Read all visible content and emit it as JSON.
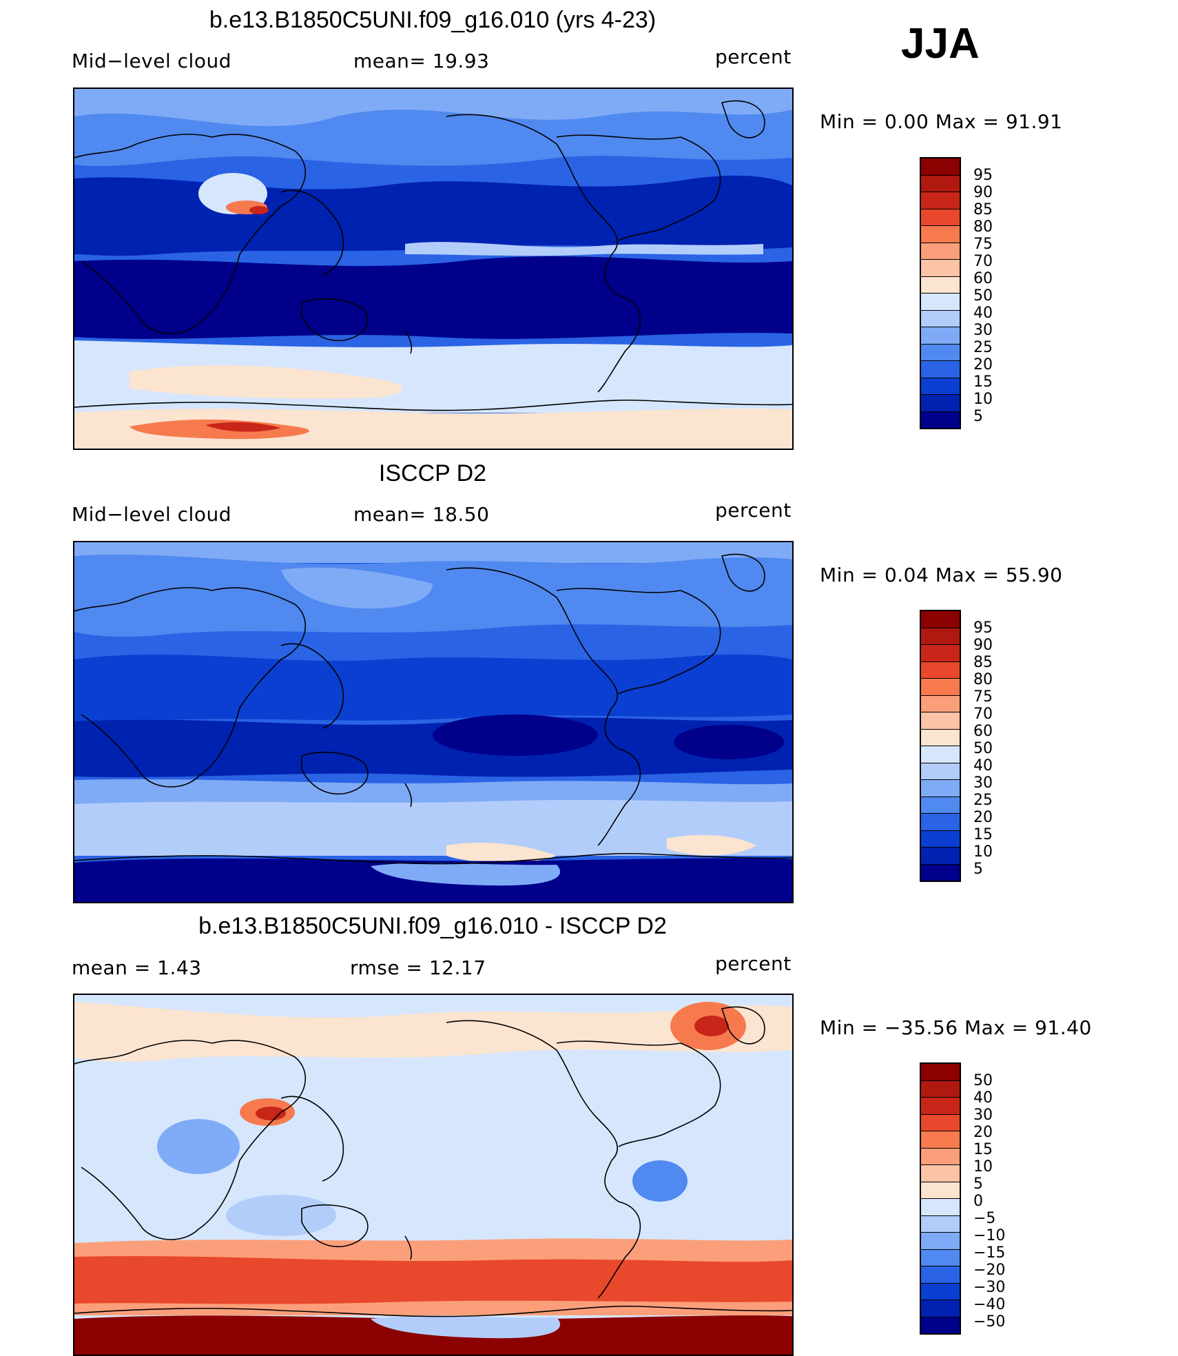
{
  "season": "JJA",
  "panels": [
    {
      "id": "model",
      "title": "b.e13.B1850C5UNI.f09_g16.010 (yrs 4-23)",
      "left_label": "Mid−level  cloud",
      "center_label": "mean=   19.93",
      "units": "percent",
      "minmax": "Min  =     0.00  Max  =    91.91",
      "colorbar_levels": [
        "95",
        "90",
        "85",
        "80",
        "75",
        "70",
        "60",
        "50",
        "40",
        "30",
        "25",
        "20",
        "15",
        "10",
        "5"
      ],
      "colors": {
        "c0": "#00008b",
        "c1": "#0022b0",
        "c2": "#0b3fd1",
        "c3": "#2a63e4",
        "c4": "#5089ef",
        "c5": "#7fabf6",
        "c6": "#b3cdfb",
        "c7": "#d6e6fd",
        "c8": "#fbe4d0",
        "c9": "#fcc3a6",
        "c10": "#fb9f7a",
        "c11": "#f77a4f",
        "c12": "#e8482b",
        "c13": "#c9261a",
        "c14": "#b0190f",
        "c15": "#8b0000"
      }
    },
    {
      "id": "obs",
      "title": "ISCCP D2",
      "left_label": "Mid−level  cloud",
      "center_label": "mean=   18.50",
      "units": "percent",
      "minmax": "Min  =     0.04  Max  =    55.90",
      "colorbar_levels": [
        "95",
        "90",
        "85",
        "80",
        "75",
        "70",
        "60",
        "50",
        "40",
        "30",
        "25",
        "20",
        "15",
        "10",
        "5"
      ],
      "colors": {
        "c0": "#00008b",
        "c1": "#0022b0",
        "c2": "#0b3fd1",
        "c3": "#2a63e4",
        "c4": "#5089ef",
        "c5": "#7fabf6",
        "c6": "#b3cdfb",
        "c7": "#d6e6fd",
        "c8": "#fbe4d0",
        "c9": "#fcc3a6",
        "c10": "#fb9f7a",
        "c11": "#f77a4f",
        "c12": "#e8482b",
        "c13": "#c9261a",
        "c14": "#b0190f",
        "c15": "#8b0000"
      }
    },
    {
      "id": "diff",
      "title": "b.e13.B1850C5UNI.f09_g16.010 - ISCCP D2",
      "left_label": "mean  =      1.43",
      "center_label": "rmse  =     12.17",
      "units": "percent",
      "minmax": "Min  =  −35.56  Max  =    91.40",
      "colorbar_levels": [
        "50",
        "40",
        "30",
        "20",
        "15",
        "10",
        "5",
        "0",
        "−5",
        "−10",
        "−15",
        "−20",
        "−30",
        "−40",
        "−50"
      ],
      "colors": {
        "c0": "#00008b",
        "c1": "#0022b0",
        "c2": "#0b3fd1",
        "c3": "#2a63e4",
        "c4": "#5089ef",
        "c5": "#7fabf6",
        "c6": "#b3cdfb",
        "c7": "#d6e6fd",
        "c8": "#fbe4d0",
        "c9": "#fcc3a6",
        "c10": "#fb9f7a",
        "c11": "#f77a4f",
        "c12": "#e8482b",
        "c13": "#c9261a",
        "c14": "#b0190f",
        "c15": "#8b0000"
      }
    }
  ]
}
